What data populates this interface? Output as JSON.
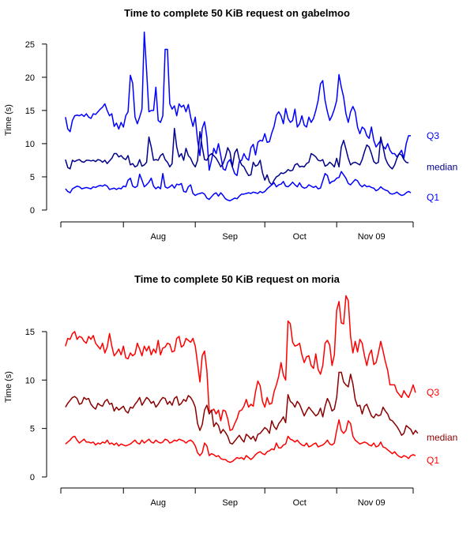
{
  "chart_data": [
    {
      "type": "line",
      "title": "Time to complete 50 KiB request on gabelmoo",
      "ylabel": "Time (s)",
      "xlabel": "",
      "ylim": [
        0,
        27
      ],
      "yticks": [
        0,
        5,
        10,
        15,
        20,
        25
      ],
      "xticks": [
        {
          "label": "Aug",
          "x": 30
        },
        {
          "label": "Sep",
          "x": 61
        },
        {
          "label": "Oct",
          "x": 91
        },
        {
          "label": "Nov 09",
          "x": 122
        }
      ],
      "xlim": [
        -2,
        150
      ],
      "grid": false,
      "legend": "right-labels",
      "x_step": 1,
      "series": [
        {
          "name": "Q3",
          "color": "#0000ff",
          "values": [
            14,
            12.2,
            11.8,
            13.5,
            14.2,
            14.3,
            14.2,
            14.4,
            14.1,
            14.5,
            14,
            13.8,
            14.5,
            14.4,
            14.8,
            15.2,
            15.5,
            16,
            15,
            14.2,
            14.5,
            12.6,
            13.1,
            12.2,
            13.2,
            12.5,
            14.2,
            14.8,
            20.3,
            19.1,
            14,
            13,
            14,
            15.2,
            26.8,
            21,
            14.8,
            15,
            15,
            18.5,
            13.5,
            13.2,
            14.2,
            24.2,
            24.2,
            16,
            15.2,
            15.7,
            14.2,
            16,
            15.5,
            15.8,
            14.8,
            15.9,
            14,
            12.6,
            14,
            10.5,
            8.2,
            12.3,
            13.3,
            11,
            6,
            7.5,
            9.3,
            8.5,
            10,
            8.2,
            6.2,
            6,
            7.2,
            7.6,
            6.5,
            5.5,
            5.2,
            7.3,
            7.5,
            8.5,
            7.8,
            7.5,
            9.4,
            9.9,
            8.3,
            10.2,
            10.5,
            10.4,
            11.5,
            10.2,
            10.3,
            11.6,
            12.6,
            14.3,
            14.8,
            14.2,
            13,
            15.3,
            13.8,
            13.2,
            13.5,
            15.2,
            12.5,
            13,
            14.2,
            12.8,
            12.5,
            14,
            13.2,
            13.8,
            15,
            16.5,
            19,
            19.5,
            16.5,
            14.8,
            13.5,
            14.2,
            15.2,
            16.5,
            20.4,
            18.5,
            17,
            14.5,
            13.2,
            14.8,
            15.6,
            14.8,
            12.5,
            11.5,
            12.5,
            12.2,
            11.2,
            10.8,
            12.5,
            10.5,
            9.5,
            10,
            10.5,
            9.6,
            9.2,
            10,
            9,
            8.5,
            8.5,
            8,
            8.5,
            9,
            7.8,
            10,
            11.2,
            11.2
          ]
        },
        {
          "name": "median",
          "color": "#00008b",
          "values": [
            7.6,
            6.4,
            6.2,
            7.5,
            7.3,
            7.5,
            7.6,
            7.3,
            7.2,
            7.5,
            7.5,
            7.4,
            7.5,
            7.3,
            7.6,
            7.5,
            7.2,
            7.5,
            7,
            7.4,
            7.8,
            8.5,
            8.5,
            8,
            8.2,
            7.8,
            7.6,
            8.2,
            6.8,
            7,
            6.5,
            6.7,
            7.6,
            6.6,
            6.8,
            7.2,
            11,
            9.5,
            7.5,
            7.6,
            7.5,
            8.2,
            8.5,
            7.6,
            7.2,
            6.5,
            7,
            12.3,
            9.5,
            8,
            8.5,
            7.5,
            9.3,
            8.2,
            7.8,
            7,
            6.5,
            7.5,
            11.8,
            9.5,
            7.6,
            7.5,
            8.2,
            8.5,
            8.2,
            7.8,
            7.2,
            6.5,
            7,
            8,
            9.4,
            8.7,
            6.5,
            8.6,
            9.2,
            7.6,
            6.8,
            6.5,
            5.8,
            5.2,
            5.3,
            7.2,
            6.6,
            6.8,
            7.5,
            5.6,
            4.5,
            5.3,
            4.2,
            3.8,
            4.5,
            5,
            5.2,
            5.6,
            5.5,
            5.7,
            6.1,
            5.9,
            6,
            6.8,
            7,
            6.5,
            6.6,
            6.5,
            7,
            7.2,
            8.5,
            8.3,
            8,
            7.5,
            7.4,
            7.6,
            6.6,
            6.8,
            7.2,
            6.9,
            6.5,
            7.8,
            6.5,
            9.5,
            10.5,
            9.2,
            7.8,
            6.8,
            7.1,
            7.2,
            7,
            6.8,
            7.6,
            8.8,
            9.8,
            9.5,
            8.5,
            7.3,
            7,
            7.2,
            11,
            9.5,
            7.8,
            7,
            6.5,
            6.2,
            6.8,
            7.8,
            8.5,
            8.3,
            7.6,
            7.2,
            7.1
          ]
        },
        {
          "name": "Q1",
          "color": "#0000ff",
          "values": [
            3.2,
            2.8,
            2.6,
            3.2,
            3.4,
            3.6,
            3.5,
            3.2,
            3.3,
            3.4,
            3.3,
            3.2,
            3.5,
            3.4,
            3.6,
            3.7,
            3.6,
            3.8,
            3.6,
            3.1,
            3.2,
            3.3,
            3.1,
            3.3,
            3.2,
            3.6,
            3.5,
            4.5,
            4.8,
            3.6,
            3.4,
            3.6,
            5.4,
            4.5,
            3.5,
            3.8,
            4.2,
            4.8,
            3.6,
            3.2,
            3.5,
            3.2,
            5.5,
            3.5,
            3.3,
            3.5,
            3.8,
            3.3,
            3.9,
            3.8,
            4,
            2.8,
            2.7,
            3.5,
            3.8,
            2.5,
            2.2,
            2.4,
            2.5,
            2.6,
            2.4,
            1.8,
            1.6,
            2,
            2.4,
            2.6,
            2.1,
            2.6,
            2.2,
            1.7,
            1.5,
            1.4,
            1.6,
            1.8,
            1.7,
            2.1,
            2.4,
            2.4,
            2.5,
            2.6,
            2.5,
            2.7,
            2.6,
            2.5,
            2.8,
            2.6,
            2.8,
            3.2,
            3.5,
            3.8,
            4.1,
            3.5,
            3.8,
            3.9,
            4.3,
            3.6,
            3.5,
            3.8,
            4.2,
            3.8,
            3.5,
            4.1,
            3.5,
            3.3,
            3.4,
            3.8,
            3.6,
            3.4,
            3.6,
            3.2,
            3.3,
            4.4,
            5.5,
            5.2,
            4,
            4.3,
            4.4,
            4.8,
            4.9,
            5.8,
            5.3,
            4.8,
            4,
            3.8,
            4.2,
            4.6,
            4.4,
            3.8,
            3.5,
            3.8,
            3.5,
            3.6,
            3.4,
            3.3,
            2.9,
            3.1,
            3.5,
            3.2,
            3,
            2.9,
            2.5,
            2.4,
            2.5,
            2.7,
            2.4,
            2.2,
            2.3,
            2.6,
            2.8,
            2.6
          ]
        }
      ]
    },
    {
      "type": "line",
      "title": "Time to complete 50 KiB request on moria",
      "ylabel": "Time (s)",
      "xlabel": "",
      "ylim": [
        0,
        18.5
      ],
      "yticks": [
        0,
        5,
        10,
        15
      ],
      "xticks": [
        {
          "label": "Aug",
          "x": 30
        },
        {
          "label": "Sep",
          "x": 61
        },
        {
          "label": "Oct",
          "x": 91
        },
        {
          "label": "Nov 09",
          "x": 122
        }
      ],
      "xlim": [
        -2,
        150
      ],
      "grid": false,
      "legend": "right-labels",
      "x_step": 1,
      "series": [
        {
          "name": "Q3",
          "color": "#ff0000",
          "values": [
            13.5,
            14.3,
            14.2,
            14.8,
            15,
            14.2,
            14.5,
            14.4,
            14,
            13.8,
            14.5,
            14.2,
            14.6,
            13.8,
            13.5,
            13.2,
            13.8,
            12.8,
            13.4,
            14.8,
            13.5,
            12.5,
            12.8,
            13.2,
            12.6,
            13.5,
            12.3,
            12.2,
            12.8,
            12.5,
            12.7,
            13.8,
            13.2,
            12.5,
            13.5,
            13,
            13.5,
            12.6,
            13.2,
            12.8,
            14.1,
            12.6,
            13.3,
            13.4,
            13.8,
            13.7,
            12.9,
            13,
            14.3,
            14.5,
            13.4,
            13.6,
            14.3,
            14.1,
            13.9,
            14.3,
            13.5,
            11.7,
            9.8,
            12.5,
            13,
            11,
            6.8,
            6.8,
            7,
            6.5,
            6.9,
            5.8,
            6.9,
            6.8,
            6,
            4.8,
            4.9,
            5.5,
            6,
            6.8,
            6.9,
            7.3,
            8,
            7.2,
            7.5,
            7.3,
            8.8,
            9.9,
            9.4,
            7.8,
            7.2,
            8.2,
            7.5,
            7.6,
            8.8,
            9.5,
            10.4,
            11.8,
            10.5,
            10,
            16.1,
            15.8,
            13.9,
            13.5,
            13.6,
            13.8,
            12.6,
            11.8,
            12.4,
            12.5,
            11.5,
            11.2,
            12.7,
            11.1,
            10.6,
            11.5,
            13.8,
            14.1,
            13.6,
            11.5,
            12.6,
            17.2,
            18.1,
            15.9,
            15.8,
            18.7,
            18.2,
            14.5,
            12.8,
            14,
            12.9,
            14.2,
            13.8,
            12.5,
            11.5,
            12.6,
            13.1,
            11.6,
            11.8,
            12.8,
            14,
            13,
            11.9,
            11,
            9.5,
            9.5,
            9.5,
            8.8,
            8.5,
            8.2,
            8.9,
            8.5,
            8.2,
            8.8,
            9.5,
            8.7
          ]
        },
        {
          "name": "median",
          "color": "#8b0000",
          "values": [
            7.2,
            7.6,
            7.9,
            8.2,
            8.3,
            8.1,
            7.5,
            7.6,
            8.2,
            8,
            8.1,
            7.5,
            7.2,
            7,
            7.6,
            7.4,
            7.3,
            7.8,
            8,
            7.5,
            7.6,
            6.8,
            7.2,
            6.9,
            7.1,
            7.3,
            6.8,
            6.6,
            7.2,
            7.1,
            7.5,
            7.8,
            8.2,
            7.4,
            7.8,
            8.2,
            8,
            7.6,
            7.8,
            7.2,
            7.5,
            7.9,
            8.2,
            8.1,
            7.5,
            7.8,
            7.4,
            8.1,
            8.3,
            7.4,
            7.6,
            8,
            7.8,
            8.4,
            8.2,
            7.8,
            7.2,
            5.5,
            4.8,
            5.4,
            6.9,
            7.4,
            6.5,
            6.9,
            5.2,
            5.6,
            5.3,
            4.5,
            4.9,
            4.6,
            4.2,
            3.5,
            3.4,
            3.7,
            4,
            4.3,
            3.9,
            3.6,
            4.4,
            4.2,
            3.9,
            4.2,
            3.7,
            4.4,
            4.5,
            4.8,
            5.1,
            4.9,
            4.5,
            5.8,
            5.2,
            4.9,
            5.5,
            5.8,
            6.2,
            5.6,
            8.5,
            7.8,
            7.6,
            7.2,
            7.8,
            7.5,
            6.9,
            6.3,
            6.8,
            7.2,
            6.9,
            6.6,
            6.3,
            6.5,
            7.1,
            6.2,
            7.3,
            8.1,
            7.6,
            6.8,
            7,
            8.2,
            10.8,
            10.8,
            9.8,
            9.5,
            9.3,
            10.6,
            9.6,
            8,
            7.3,
            7.4,
            6.5,
            7.3,
            7.5,
            6.9,
            6.3,
            6.1,
            6.5,
            6.3,
            6.4,
            7.2,
            6.8,
            6.5,
            5.9,
            5.8,
            5.5,
            5.2,
            4.8,
            4.3,
            4.5,
            5.3,
            5.1,
            4.9,
            4.4,
            4.8,
            4.5
          ]
        },
        {
          "name": "Q1",
          "color": "#ff0000",
          "values": [
            3.4,
            3.6,
            3.8,
            4.1,
            4.2,
            3.8,
            3.5,
            3.7,
            3.9,
            3.6,
            3.6,
            3.5,
            3.6,
            3.3,
            3.5,
            3.4,
            3.6,
            3.5,
            3.8,
            3.4,
            3.5,
            3.3,
            3.5,
            3.2,
            3.4,
            3.3,
            3.2,
            3.3,
            3.4,
            3.6,
            3.8,
            3.5,
            3.4,
            3.8,
            3.5,
            3.7,
            3.9,
            3.6,
            3.5,
            3.8,
            3.6,
            3.5,
            3.6,
            3.9,
            3.8,
            3.5,
            3.6,
            3.8,
            3.7,
            3.9,
            3.8,
            3.7,
            3.5,
            3.7,
            3.8,
            3.6,
            3.2,
            2.5,
            2.2,
            2.5,
            3.5,
            3.2,
            2.2,
            2.4,
            2.3,
            2.1,
            2.2,
            1.9,
            1.8,
            1.8,
            1.6,
            1.5,
            1.6,
            1.8,
            2,
            1.9,
            2,
            1.8,
            2.2,
            2,
            1.8,
            2,
            2.3,
            2.5,
            2.6,
            2.4,
            2.3,
            2.6,
            2.7,
            2.9,
            2.8,
            3.5,
            3,
            3,
            3.3,
            3.4,
            4.2,
            3.9,
            3.8,
            3.6,
            3.8,
            3.5,
            3.3,
            3.2,
            3.5,
            3.1,
            3.2,
            3.4,
            3.5,
            3.1,
            3.2,
            3.3,
            3.5,
            3.8,
            3.4,
            3.3,
            3.5,
            4.8,
            5.9,
            4.8,
            4.5,
            4.8,
            5.8,
            5.5,
            4.2,
            3.8,
            3.6,
            3.4,
            3.5,
            3.6,
            3.5,
            3.3,
            3.2,
            3.5,
            3.1,
            3.2,
            3.6,
            3.1,
            3,
            2.8,
            2.6,
            2.4,
            2.6,
            2.3,
            2.1,
            2,
            2.2,
            2.1,
            1.9,
            2.2,
            2.3,
            2.2
          ]
        }
      ]
    }
  ]
}
